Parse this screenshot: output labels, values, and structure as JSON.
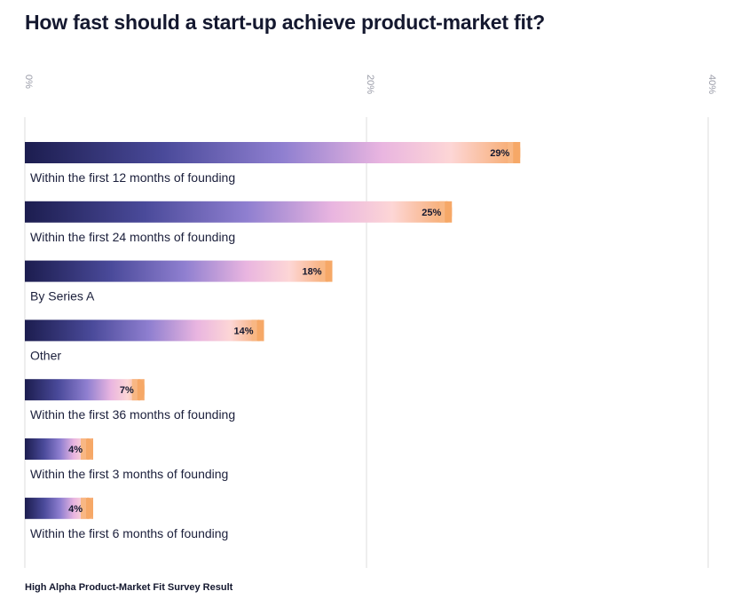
{
  "header": {
    "title": "How fast should a start-up achieve product-market fit?"
  },
  "footer": {
    "source": "High Alpha Product-Market Fit Survey Result"
  },
  "chart_data": {
    "type": "bar",
    "orientation": "horizontal",
    "title": "How fast should a start-up achieve product-market fit?",
    "categories": [
      "Within the first 12 months of founding",
      "Within the first 24 months of founding",
      "By Series A",
      "Other",
      "Within the first 36 months of founding",
      "Within the first 3 months of founding",
      "Within the first 6 months of founding"
    ],
    "values": [
      29,
      25,
      18,
      14,
      7,
      4,
      4
    ],
    "value_labels": [
      "29%",
      "25%",
      "18%",
      "14%",
      "7%",
      "4%",
      "4%"
    ],
    "xlim": [
      0,
      40
    ],
    "x_ticks": [
      0,
      20,
      40
    ],
    "x_tick_labels": [
      "0%",
      "20%",
      "40%"
    ],
    "tick_label_orientation": "rotated",
    "grid": true,
    "gradient_colors": [
      "#1c1d4f",
      "#4a4a9a",
      "#8f7fd0",
      "#e9b5e0",
      "#fdd6d6",
      "#f6a867"
    ],
    "gridline_color": "#dcdcdc",
    "text_color": "#14182f"
  }
}
